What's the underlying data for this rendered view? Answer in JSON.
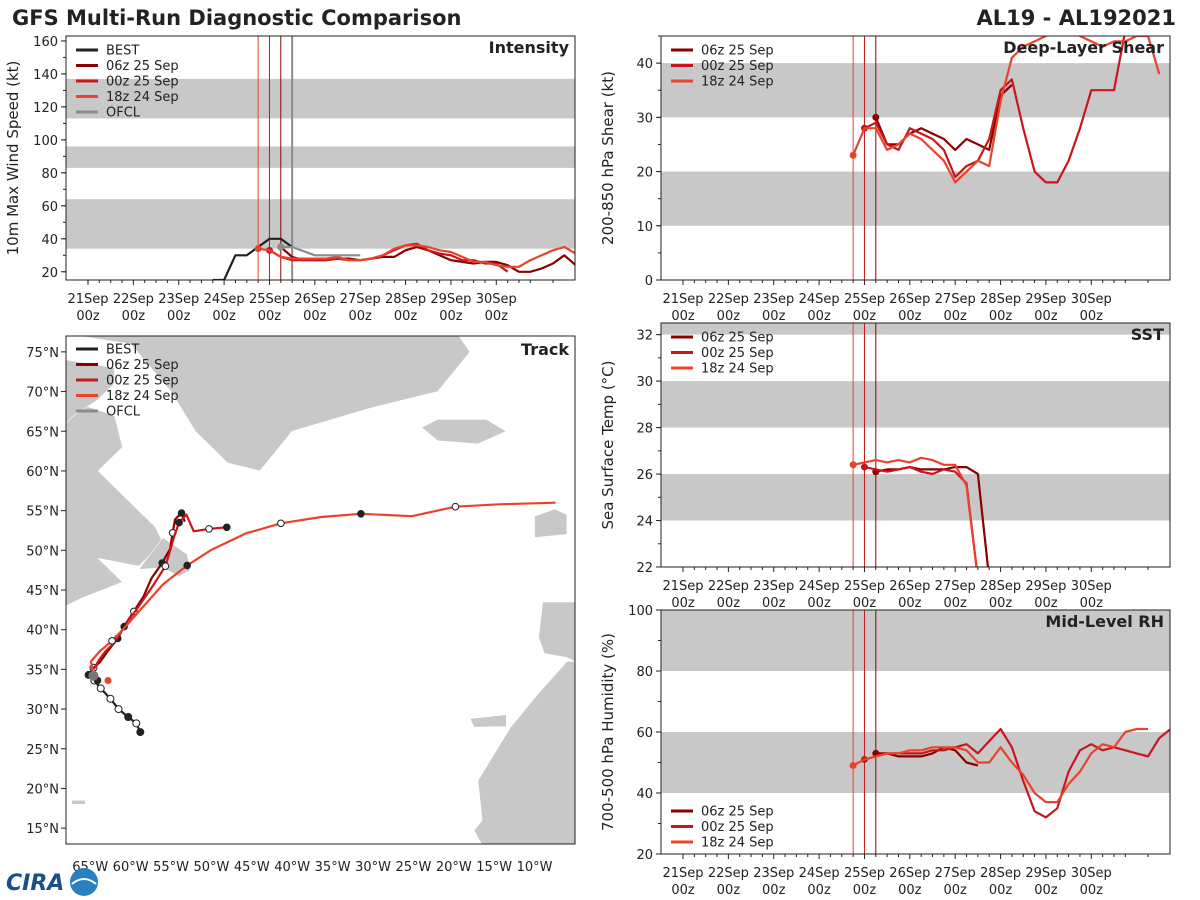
{
  "header": {
    "title_left": "GFS Multi-Run Diagnostic Comparison",
    "title_right": "AL19 - AL192021"
  },
  "logo": {
    "text": "CIRA"
  },
  "colors": {
    "best": "#222222",
    "run06z": "#8b0000",
    "run00z": "#c8161d",
    "run18z": "#e8432d",
    "ofcl": "#8c8c8c",
    "band": "#c8c8c8",
    "land": "#c8c8c8"
  },
  "time_axis": {
    "labels": [
      [
        "21Sep",
        "00z"
      ],
      [
        "22Sep",
        "00z"
      ],
      [
        "23Sep",
        "00z"
      ],
      [
        "24Sep",
        "00z"
      ],
      [
        "25Sep",
        "00z"
      ],
      [
        "26Sep",
        "00z"
      ],
      [
        "27Sep",
        "00z"
      ],
      [
        "28Sep",
        "00z"
      ],
      [
        "29Sep",
        "00z"
      ],
      [
        "30Sep",
        "00z"
      ]
    ],
    "run_lines_hours": [
      -6,
      0,
      6
    ],
    "ofcl_line_hour": 12
  },
  "chart_data": [
    {
      "id": "intensity",
      "type": "line",
      "title": "Intensity",
      "ylabel": "10m Max Wind Speed (kt)",
      "ylim": [
        15,
        163
      ],
      "yticks": [
        20,
        40,
        60,
        80,
        100,
        120,
        140,
        160
      ],
      "bands": [
        [
          34,
          64
        ],
        [
          83,
          96
        ],
        [
          113,
          137
        ]
      ],
      "legend": [
        "BEST",
        "06z 25 Sep",
        "00z 25 Sep",
        "18z 24 Sep",
        "OFCL"
      ],
      "series": [
        {
          "name": "BEST",
          "color_key": "best",
          "x": [
            -30,
            -24,
            -18,
            -12,
            -6,
            0,
            6,
            12
          ],
          "y": [
            15,
            15,
            30,
            30,
            35,
            40,
            40,
            35
          ]
        },
        {
          "name": "06z 25 Sep",
          "color_key": "run06z",
          "x": [
            6,
            12,
            18,
            24,
            30,
            36,
            42,
            48,
            54,
            60,
            66,
            72,
            78,
            84,
            90,
            96,
            102,
            108,
            114,
            120,
            126,
            132,
            138,
            144,
            150,
            156,
            162,
            168
          ],
          "y": [
            35,
            29,
            27,
            27,
            27,
            28,
            28,
            27,
            28,
            29,
            29,
            33,
            35,
            33,
            30,
            27,
            26,
            25,
            26,
            26,
            24,
            20,
            20,
            22,
            25,
            30,
            24,
            25
          ]
        },
        {
          "name": "00z 25 Sep",
          "color_key": "run00z",
          "x": [
            0,
            6,
            12,
            18,
            24,
            30,
            36,
            42,
            48,
            54,
            60,
            66,
            72,
            78,
            84,
            90,
            96,
            102,
            108,
            114,
            120,
            126
          ],
          "y": [
            33,
            29,
            27,
            27,
            27,
            27,
            28,
            27,
            27,
            28,
            30,
            33,
            36,
            37,
            33,
            31,
            30,
            27,
            27,
            25,
            25,
            20
          ]
        },
        {
          "name": "18z 24 Sep",
          "color_key": "run18z",
          "x": [
            -6,
            0,
            6,
            12,
            18,
            24,
            30,
            36,
            42,
            48,
            54,
            60,
            66,
            72,
            78,
            84,
            90,
            96,
            102,
            108,
            114,
            120,
            126,
            132,
            138,
            144,
            150,
            156,
            162
          ],
          "y": [
            34,
            33,
            29,
            28,
            28,
            28,
            28,
            29,
            27,
            27,
            28,
            30,
            34,
            36,
            36,
            35,
            33,
            32,
            29,
            26,
            26,
            24,
            23,
            23,
            27,
            30,
            33,
            35,
            31
          ]
        },
        {
          "name": "OFCL",
          "color_key": "ofcl",
          "x": [
            6,
            12,
            24,
            36,
            48
          ],
          "y": [
            35,
            35,
            30,
            30,
            30
          ]
        }
      ]
    },
    {
      "id": "shear",
      "type": "line",
      "title": "Deep-Layer Shear",
      "ylabel": "200-850 hPa Shear (kt)",
      "ylim": [
        0,
        45
      ],
      "yticks": [
        0,
        10,
        20,
        30,
        40
      ],
      "bands": [
        [
          10,
          20
        ],
        [
          30,
          40
        ]
      ],
      "legend": [
        "06z 25 Sep",
        "00z 25 Sep",
        "18z 24 Sep"
      ],
      "series": [
        {
          "name": "06z 25 Sep",
          "color_key": "run06z",
          "x": [
            6,
            12,
            18,
            24,
            30,
            36,
            42,
            48,
            54,
            60,
            66,
            72,
            78
          ],
          "y": [
            30,
            25,
            25,
            27,
            28,
            27,
            26,
            24,
            26,
            25,
            24,
            34,
            36
          ]
        },
        {
          "name": "00z 25 Sep",
          "color_key": "run00z",
          "x": [
            0,
            6,
            12,
            18,
            24,
            30,
            36,
            42,
            48,
            54,
            60,
            66,
            72,
            78,
            84,
            90,
            96,
            102,
            108,
            114,
            120,
            126,
            132,
            138,
            144,
            150
          ],
          "y": [
            28,
            29,
            25,
            24,
            28,
            27,
            26,
            24,
            19,
            21,
            22,
            26,
            35,
            37,
            28,
            20,
            18,
            18,
            22,
            28,
            35,
            35,
            35,
            46,
            46,
            45
          ]
        },
        {
          "name": "18z 24 Sep",
          "color_key": "run18z",
          "x": [
            -6,
            0,
            6,
            12,
            18,
            24,
            30,
            36,
            42,
            48,
            54,
            60,
            66,
            72,
            78,
            84,
            90,
            96,
            102,
            108,
            114,
            120,
            126,
            132,
            138,
            144,
            150,
            156
          ],
          "y": [
            23,
            28,
            28,
            24,
            25,
            27,
            26,
            24,
            22,
            18,
            20,
            22,
            21,
            33,
            41,
            43,
            44,
            45,
            47,
            46,
            45,
            44,
            43,
            44,
            44,
            45,
            45,
            38
          ]
        }
      ]
    },
    {
      "id": "sst",
      "type": "line",
      "title": "SST",
      "ylabel": "Sea Surface Temp (°C)",
      "ylim": [
        22,
        32.5
      ],
      "yticks": [
        22,
        24,
        26,
        28,
        30,
        32
      ],
      "bands": [
        [
          24,
          26
        ],
        [
          28,
          30
        ],
        [
          32,
          33
        ]
      ],
      "legend": [
        "06z 25 Sep",
        "00z 25 Sep",
        "18z 24 Sep"
      ],
      "series": [
        {
          "name": "06z 25 Sep",
          "color_key": "run06z",
          "x": [
            6,
            12,
            18,
            24,
            30,
            36,
            42,
            48,
            54,
            60,
            66
          ],
          "y": [
            26.1,
            26.2,
            26.2,
            26.3,
            26.2,
            26.2,
            26.2,
            26.3,
            26.3,
            26.0,
            21.5
          ]
        },
        {
          "name": "00z 25 Sep",
          "color_key": "run00z",
          "x": [
            0,
            6,
            12,
            18,
            24,
            30,
            36,
            42,
            48,
            54,
            60
          ],
          "y": [
            26.3,
            26.2,
            26.1,
            26.2,
            26.3,
            26.1,
            26.0,
            26.2,
            26.1,
            25.6,
            21.5
          ]
        },
        {
          "name": "18z 24 Sep",
          "color_key": "run18z",
          "x": [
            -6,
            0,
            6,
            12,
            18,
            24,
            30,
            36,
            42,
            48,
            54,
            60
          ],
          "y": [
            26.4,
            26.5,
            26.6,
            26.5,
            26.6,
            26.5,
            26.7,
            26.6,
            26.4,
            26.4,
            25.5,
            21.5
          ]
        }
      ]
    },
    {
      "id": "rh",
      "type": "line",
      "title": "Mid-Level RH",
      "ylabel": "700-500 hPa Humidity (%)",
      "ylim": [
        20,
        100
      ],
      "yticks": [
        20,
        40,
        60,
        80,
        100
      ],
      "bands": [
        [
          40,
          60
        ],
        [
          80,
          100
        ]
      ],
      "legend": [
        "06z 25 Sep",
        "00z 25 Sep",
        "18z 24 Sep"
      ],
      "series": [
        {
          "name": "06z 25 Sep",
          "color_key": "run06z",
          "x": [
            6,
            12,
            18,
            24,
            30,
            36,
            42,
            48,
            54,
            60
          ],
          "y": [
            53,
            53,
            52,
            52,
            52,
            53,
            55,
            54,
            50,
            49
          ]
        },
        {
          "name": "00z 25 Sep",
          "color_key": "run00z",
          "x": [
            0,
            6,
            12,
            18,
            24,
            30,
            36,
            42,
            48,
            54,
            60,
            66,
            72,
            78,
            84,
            90,
            96,
            102,
            108,
            114,
            120,
            126,
            132,
            138,
            144,
            150,
            156,
            162
          ],
          "y": [
            51,
            52,
            53,
            53,
            53,
            53,
            54,
            54,
            55,
            56,
            53,
            57,
            61,
            55,
            44,
            34,
            32,
            35,
            47,
            54,
            56,
            54,
            55,
            54,
            53,
            52,
            58,
            61
          ]
        },
        {
          "name": "18z 24 Sep",
          "color_key": "run18z",
          "x": [
            -6,
            0,
            6,
            12,
            18,
            24,
            30,
            36,
            42,
            48,
            54,
            60,
            66,
            72,
            78,
            84,
            90,
            96,
            102,
            108,
            114,
            120,
            126,
            132,
            138,
            144,
            150
          ],
          "y": [
            49,
            51,
            52,
            53,
            53,
            54,
            54,
            55,
            55,
            55,
            54,
            50,
            50,
            55,
            50,
            46,
            40,
            37,
            37,
            43,
            47,
            53,
            56,
            55,
            60,
            61,
            61
          ]
        }
      ]
    },
    {
      "id": "track",
      "type": "scatter",
      "title": "Track",
      "xlim": [
        -68,
        -5
      ],
      "ylim": [
        13,
        77
      ],
      "lat_ticks": [
        15,
        20,
        25,
        30,
        35,
        40,
        45,
        50,
        55,
        60,
        65,
        70,
        75
      ],
      "lat_labels": [
        "15°N",
        "20°N",
        "25°N",
        "30°N",
        "35°N",
        "40°N",
        "45°N",
        "50°N",
        "55°N",
        "60°N",
        "65°N",
        "70°N",
        "75°N"
      ],
      "lon_ticks": [
        -65,
        -60,
        -55,
        -50,
        -45,
        -40,
        -35,
        -30,
        -25,
        -20,
        -15,
        -10
      ],
      "lon_labels": [
        "65°W",
        "60°W",
        "55°W",
        "50°W",
        "45°W",
        "40°W",
        "35°W",
        "30°W",
        "25°W",
        "20°W",
        "15°W",
        "10°W"
      ],
      "legend": [
        "BEST",
        "06z 25 Sep",
        "00z 25 Sep",
        "18z 24 Sep",
        "OFCL"
      ],
      "series": [
        {
          "name": "BEST",
          "color_key": "best",
          "lon": [
            -58.8,
            -59.3,
            -60.3,
            -61.5,
            -62.5,
            -63.7,
            -64.5,
            -65.2,
            -64.6
          ],
          "lat": [
            27.1,
            28.2,
            29.0,
            30.0,
            31.3,
            32.6,
            33.6,
            34.3,
            35.2
          ],
          "filled": [
            true,
            false,
            true,
            false,
            false,
            false,
            false,
            true,
            false
          ]
        },
        {
          "name": "06z 25 Sep",
          "color_key": "run06z",
          "lon": [
            -64.6,
            -63.8,
            -62.9,
            -61.6,
            -60.7,
            -59.6,
            -58.4,
            -57.4,
            -56.1,
            -55.1,
            -54.8,
            -54.5,
            -53.7,
            -53.3
          ],
          "lat": [
            35.2,
            35.9,
            37.2,
            38.9,
            40.6,
            42.3,
            44.2,
            46.5,
            48.4,
            50.2,
            52.2,
            53.9,
            54.7,
            53.6
          ],
          "dots": [
            3,
            5,
            8,
            10,
            12
          ]
        },
        {
          "name": "00z 25 Sep",
          "color_key": "run00z",
          "lon": [
            -64.6,
            -63.9,
            -63.1,
            -62.1,
            -60.8,
            -59.1,
            -57.2,
            -55.7,
            -55.1,
            -54.6,
            -54.0,
            -53.1,
            -52.2,
            -50.3,
            -48.1
          ],
          "lat": [
            35.0,
            36.2,
            37.3,
            38.3,
            40.4,
            42.8,
            45.6,
            48.0,
            50.0,
            51.8,
            53.5,
            54.5,
            52.4,
            52.7,
            52.9
          ],
          "dots": [
            4,
            7,
            10,
            13,
            14
          ]
        },
        {
          "name": "18z 24 Sep",
          "color_key": "run18z",
          "lon": [
            -64.1,
            -64.7,
            -64.9,
            -63.8,
            -62.3,
            -60.8,
            -58.7,
            -56.0,
            -53.0,
            -50.1,
            -45.8,
            -41.4,
            -36.4,
            -31.5,
            -25.2,
            -19.8,
            -14.4,
            -7.4
          ],
          "lat": [
            33.6,
            34.7,
            36.0,
            37.3,
            38.6,
            40.2,
            42.6,
            45.7,
            48.1,
            50.0,
            52.1,
            53.4,
            54.2,
            54.6,
            54.3,
            55.5,
            55.8,
            56.0
          ],
          "dots": [
            0,
            4,
            8,
            11,
            13,
            15
          ]
        }
      ]
    }
  ]
}
